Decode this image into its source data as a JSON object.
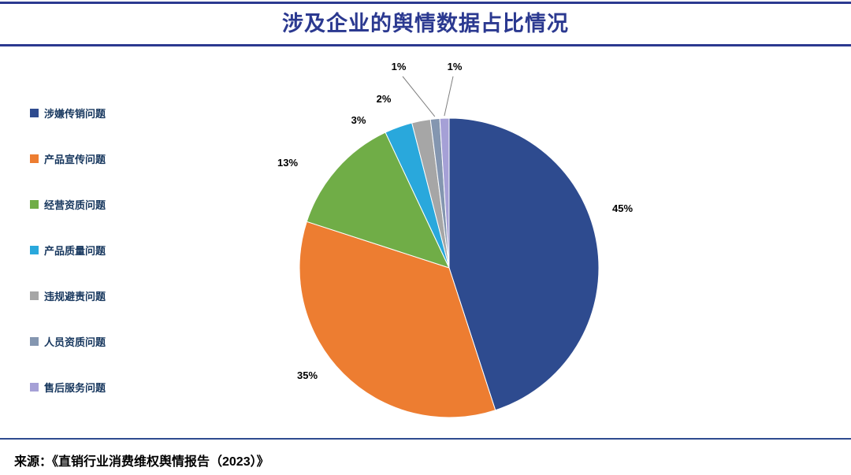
{
  "header": {
    "title": "涉及企业的舆情数据占比情况"
  },
  "footer": {
    "source": "来源：《直销行业消费维权舆情报告（2023）》"
  },
  "colors": {
    "accent": "#2b3990",
    "rule": "#2e4b8f",
    "legend_text": "#17375e"
  },
  "chart_data": {
    "type": "pie",
    "title": "涉及企业的舆情数据占比情况",
    "labels": [
      "涉嫌传销问题",
      "产品宣传问题",
      "经营资质问题",
      "产品质量问题",
      "违规避责问题",
      "人员资质问题",
      "售后服务问题"
    ],
    "values": [
      45,
      35,
      13,
      3,
      2,
      1,
      1
    ],
    "unit": "%",
    "data_labels": [
      "45%",
      "35%",
      "13%",
      "3%",
      "2%",
      "1%",
      "1%"
    ],
    "colors": [
      "#2e4b8f",
      "#ed7d31",
      "#70ad47",
      "#29a8dc",
      "#a6a6a6",
      "#8496b0",
      "#a5a0d6"
    ],
    "start_angle_deg": -90,
    "direction": "clockwise",
    "legend_position": "left",
    "source": "来源：《直销行业消费维权舆情报告（2023）》"
  }
}
